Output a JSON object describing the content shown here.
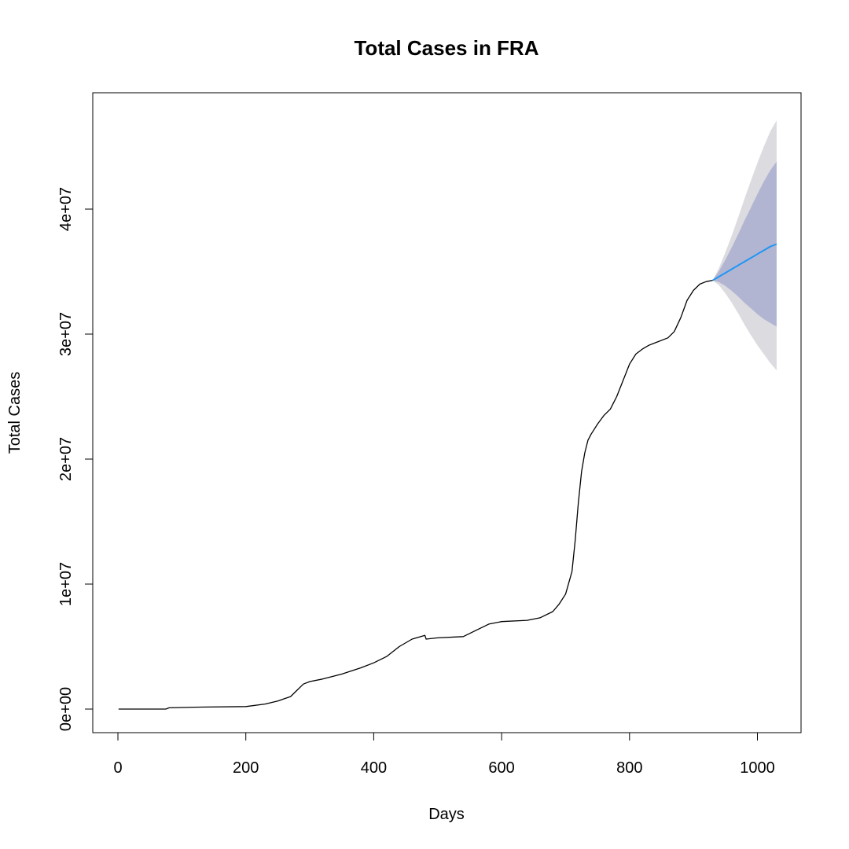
{
  "chart_data": {
    "type": "line",
    "title": "Total Cases in FRA",
    "xlabel": "Days",
    "ylabel": "Total Cases",
    "xlim": [
      0,
      1030
    ],
    "ylim": [
      0,
      47000000
    ],
    "x_ticks": [
      0,
      200,
      400,
      600,
      800,
      1000
    ],
    "x_tick_labels": [
      "0",
      "200",
      "400",
      "600",
      "800",
      "1000"
    ],
    "y_ticks": [
      0,
      10000000,
      20000000,
      30000000,
      40000000
    ],
    "y_tick_labels": [
      "0e+00",
      "1e+07",
      "2e+07",
      "3e+07",
      "4e+07"
    ],
    "grid": false,
    "colors": {
      "observed": "#000000",
      "forecast_mean": "#2196F3",
      "band_95": "#DBDBE0",
      "band_80": "#B1B5D2"
    },
    "series": [
      {
        "name": "",
        "x": [
          1,
          60,
          75,
          80,
          120,
          200,
          230,
          250,
          270,
          280,
          290,
          300,
          320,
          350,
          380,
          400,
          420,
          440,
          460,
          480,
          482,
          500,
          540,
          560,
          580,
          600,
          640,
          660,
          680,
          690,
          700,
          710,
          715,
          720,
          725,
          730,
          735,
          740,
          745,
          750,
          760,
          770,
          780,
          790,
          800,
          810,
          820,
          830,
          840,
          860,
          870,
          880,
          890,
          900,
          910,
          920,
          930
        ],
        "y": [
          0,
          0,
          0,
          100000,
          150000,
          200000,
          400000,
          650000,
          1000000,
          1500000,
          2000000,
          2200000,
          2400000,
          2800000,
          3300000,
          3700000,
          4200000,
          5000000,
          5600000,
          5900000,
          5600000,
          5700000,
          5800000,
          6300000,
          6800000,
          7000000,
          7100000,
          7300000,
          7800000,
          8400000,
          9200000,
          11000000,
          13500000,
          16500000,
          19000000,
          20500000,
          21500000,
          22000000,
          22400000,
          22800000,
          23500000,
          24000000,
          25000000,
          26300000,
          27600000,
          28400000,
          28800000,
          29100000,
          29300000,
          29700000,
          30200000,
          31300000,
          32700000,
          33500000,
          34000000,
          34200000,
          34300000
        ]
      }
    ],
    "forecast": {
      "x": [
        930,
        940,
        950,
        960,
        970,
        980,
        990,
        1000,
        1010,
        1020,
        1030
      ],
      "mean": [
        34300000,
        34600000,
        34900000,
        35200000,
        35500000,
        35800000,
        36100000,
        36400000,
        36700000,
        37000000,
        37200000
      ],
      "lo80": [
        34300000,
        34150000,
        33850000,
        33450000,
        33000000,
        32500000,
        32050000,
        31600000,
        31200000,
        30900000,
        30600000
      ],
      "hi80": [
        34300000,
        35050000,
        35950000,
        36950000,
        38000000,
        39100000,
        40150000,
        41200000,
        42200000,
        43100000,
        43800000
      ],
      "lo95": [
        34300000,
        33900000,
        33250000,
        32500000,
        31650000,
        30750000,
        29900000,
        29100000,
        28400000,
        27700000,
        27100000
      ],
      "hi95": [
        34300000,
        35300000,
        36550000,
        37900000,
        39350000,
        40850000,
        42300000,
        43700000,
        45000000,
        46200000,
        47100000
      ]
    }
  }
}
